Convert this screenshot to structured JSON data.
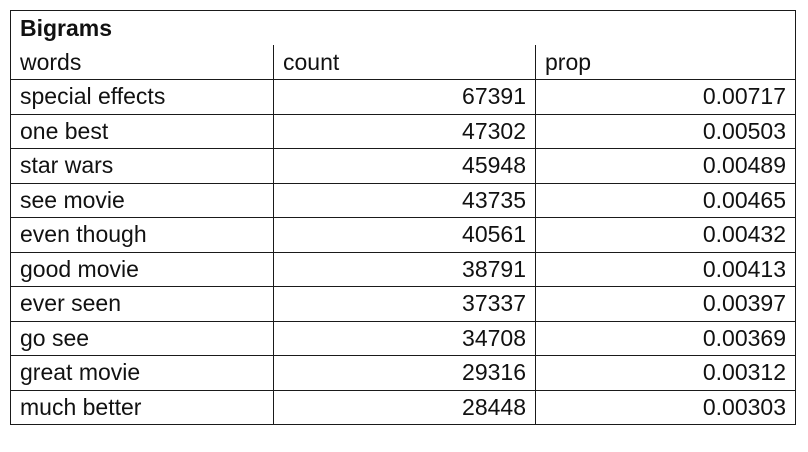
{
  "table": {
    "title": "Bigrams",
    "columns": [
      "words",
      "count",
      "prop"
    ],
    "rows": [
      {
        "words": "special effects",
        "count": "67391",
        "prop": "0.00717"
      },
      {
        "words": "one best",
        "count": "47302",
        "prop": "0.00503"
      },
      {
        "words": "star wars",
        "count": "45948",
        "prop": "0.00489"
      },
      {
        "words": "see movie",
        "count": "43735",
        "prop": "0.00465"
      },
      {
        "words": "even though",
        "count": "40561",
        "prop": "0.00432"
      },
      {
        "words": "good movie",
        "count": "38791",
        "prop": "0.00413"
      },
      {
        "words": "ever seen",
        "count": "37337",
        "prop": "0.00397"
      },
      {
        "words": "go see",
        "count": "34708",
        "prop": "0.00369"
      },
      {
        "words": "great movie",
        "count": "29316",
        "prop": "0.00312"
      },
      {
        "words": "much better",
        "count": "28448",
        "prop": "0.00303"
      }
    ]
  }
}
